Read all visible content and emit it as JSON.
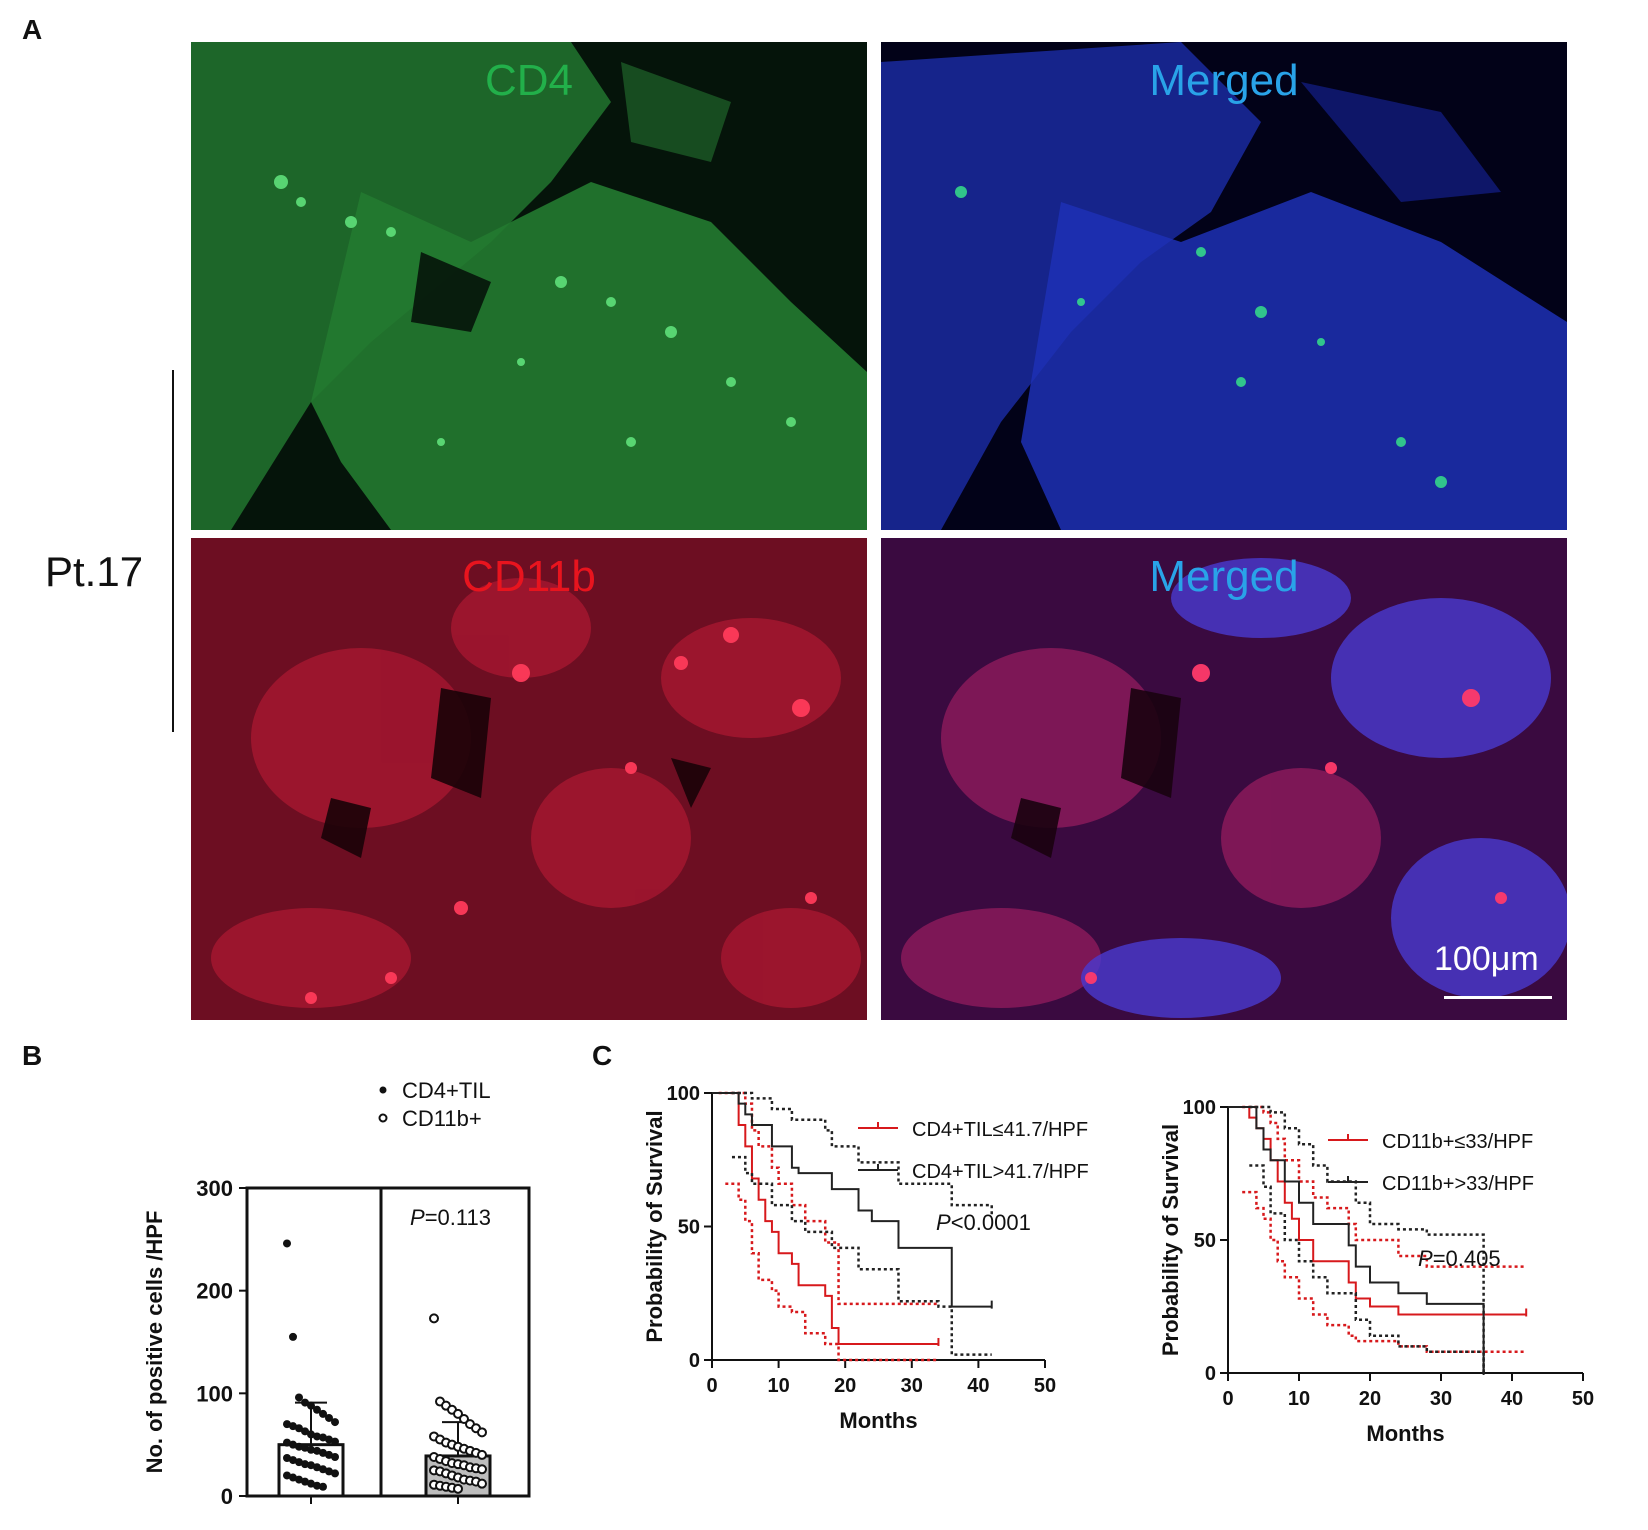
{
  "panel_a": {
    "letter": "A",
    "sample_label": "Pt.17",
    "images": [
      {
        "label": "CD4",
        "label_color": "#22b04a"
      },
      {
        "label": "Merged",
        "label_color": "#29a3e8"
      },
      {
        "label": "CD11b",
        "label_color": "#e8141e"
      },
      {
        "label": "Merged",
        "label_color": "#29a3e8"
      }
    ],
    "scale_bar": "100μm"
  },
  "panel_b": {
    "letter": "B",
    "legend": [
      "CD4+TIL",
      "CD11b+"
    ],
    "p_prefix": "P",
    "p_value": "=0.113"
  },
  "panel_c": {
    "letter": "C"
  },
  "chart_data": [
    {
      "type": "scatter",
      "panel": "B",
      "ylabel": "No. of positive cells /HPF",
      "ylim": [
        0,
        300
      ],
      "yticks": [
        0,
        100,
        200,
        300
      ],
      "series": [
        {
          "name": "CD4+TIL",
          "marker": "filled",
          "mean": 50,
          "sd_upper": 91,
          "values": [
            246,
            155,
            96,
            91,
            88,
            84,
            80,
            76,
            72,
            70,
            68,
            66,
            63,
            60,
            58,
            57,
            55,
            53,
            52,
            50,
            48,
            47,
            45,
            44,
            42,
            40,
            38,
            37,
            35,
            33,
            31,
            30,
            28,
            26,
            24,
            22,
            20,
            18,
            16,
            14,
            12,
            10,
            9
          ]
        },
        {
          "name": "CD11b+",
          "marker": "open",
          "mean": 39,
          "sd_upper": 72,
          "values": [
            173,
            92,
            88,
            84,
            80,
            75,
            70,
            66,
            62,
            58,
            55,
            52,
            50,
            48,
            46,
            44,
            42,
            40,
            38,
            36,
            34,
            32,
            31,
            30,
            28,
            27,
            26,
            25,
            24,
            22,
            20,
            18,
            16,
            15,
            14,
            12,
            11,
            10,
            9,
            8,
            7
          ]
        }
      ],
      "annotation": "P=0.113"
    },
    {
      "type": "line",
      "panel": "C-left",
      "xlabel": "Months",
      "ylabel": "Probability of Survival",
      "xlim": [
        0,
        50
      ],
      "ylim": [
        0,
        100
      ],
      "xticks": [
        0,
        10,
        20,
        30,
        40,
        50
      ],
      "yticks": [
        0,
        50,
        100
      ],
      "annotation": "P<0.0001",
      "series": [
        {
          "name": "CD4+TIL≤41.7/HPF",
          "color": "#d7191c",
          "x": [
            0,
            4,
            5,
            6,
            7,
            8,
            9,
            10,
            12,
            13,
            17,
            18,
            19,
            34
          ],
          "y": [
            100,
            88,
            80,
            68,
            60,
            52,
            48,
            40,
            36,
            28,
            24,
            12,
            6,
            6
          ],
          "lower": {
            "x": [
              2,
              4,
              5,
              6,
              7,
              9,
              10,
              12,
              14,
              17,
              19,
              34
            ],
            "y": [
              66,
              60,
              52,
              40,
              30,
              26,
              20,
              18,
              10,
              6,
              0,
              0
            ]
          },
          "upper": {
            "x": [
              1,
              4,
              5,
              6,
              7,
              9,
              10,
              12,
              14,
              17,
              19,
              34
            ],
            "y": [
              100,
              100,
              96,
              86,
              80,
              72,
              66,
              58,
              52,
              44,
              21,
              21
            ]
          }
        },
        {
          "name": "CD4+TIL>41.7/HPF",
          "color": "#222222",
          "x": [
            0,
            4,
            5,
            6,
            9,
            12,
            13,
            17,
            18,
            22,
            24,
            28,
            34,
            36,
            42
          ],
          "y": [
            100,
            96,
            92,
            88,
            80,
            72,
            70,
            70,
            64,
            56,
            52,
            42,
            42,
            20,
            20
          ],
          "lower": {
            "x": [
              3,
              5,
              6,
              9,
              12,
              14,
              18,
              22,
              28,
              34,
              36,
              42
            ],
            "y": [
              76,
              70,
              66,
              58,
              52,
              48,
              42,
              34,
              22,
              20,
              2,
              2
            ]
          },
          "upper": {
            "x": [
              3,
              5,
              6,
              9,
              12,
              17,
              18,
              22,
              28,
              36,
              42
            ],
            "y": [
              100,
              100,
              98,
              94,
              90,
              86,
              80,
              74,
              66,
              58,
              54
            ]
          }
        }
      ]
    },
    {
      "type": "line",
      "panel": "C-right",
      "xlabel": "Months",
      "ylabel": "Probability of Survival",
      "xlim": [
        0,
        50
      ],
      "ylim": [
        0,
        100
      ],
      "xticks": [
        0,
        10,
        20,
        30,
        40,
        50
      ],
      "yticks": [
        0,
        50,
        100
      ],
      "annotation": "P=0.405",
      "series": [
        {
          "name": "CD11b+≤33/HPF",
          "color": "#d7191c",
          "x": [
            0,
            3,
            4,
            5,
            6,
            7,
            8,
            9,
            10,
            12,
            14,
            17,
            18,
            20,
            24,
            28,
            36,
            42
          ],
          "y": [
            100,
            96,
            92,
            88,
            80,
            72,
            64,
            58,
            50,
            42,
            42,
            34,
            28,
            25,
            22,
            22,
            22,
            22
          ],
          "lower": {
            "x": [
              2,
              4,
              5,
              6,
              7,
              8,
              10,
              12,
              14,
              17,
              18,
              24,
              28,
              42
            ],
            "y": [
              68,
              62,
              58,
              50,
              42,
              36,
              28,
              22,
              18,
              14,
              12,
              10,
              8,
              8
            ]
          },
          "upper": {
            "x": [
              2,
              4,
              5,
              6,
              7,
              8,
              10,
              12,
              14,
              17,
              18,
              24,
              28,
              42
            ],
            "y": [
              100,
              100,
              98,
              94,
              88,
              80,
              72,
              66,
              62,
              56,
              50,
              44,
              40,
              40
            ]
          }
        },
        {
          "name": "CD11b+>33/HPF",
          "color": "#222222",
          "x": [
            0,
            4,
            5,
            6,
            8,
            10,
            12,
            14,
            17,
            18,
            20,
            24,
            28,
            36
          ],
          "y": [
            100,
            92,
            84,
            80,
            72,
            64,
            56,
            56,
            48,
            40,
            34,
            30,
            26,
            0
          ],
          "lower": {
            "x": [
              3,
              5,
              6,
              8,
              10,
              12,
              14,
              18,
              20,
              24,
              28,
              36
            ],
            "y": [
              78,
              70,
              60,
              50,
              42,
              36,
              30,
              20,
              14,
              10,
              8,
              0
            ]
          },
          "upper": {
            "x": [
              3,
              5,
              6,
              8,
              10,
              12,
              14,
              18,
              20,
              24,
              28,
              36
            ],
            "y": [
              100,
              100,
              98,
              92,
              86,
              78,
              72,
              64,
              56,
              54,
              52,
              0
            ]
          }
        }
      ]
    }
  ]
}
